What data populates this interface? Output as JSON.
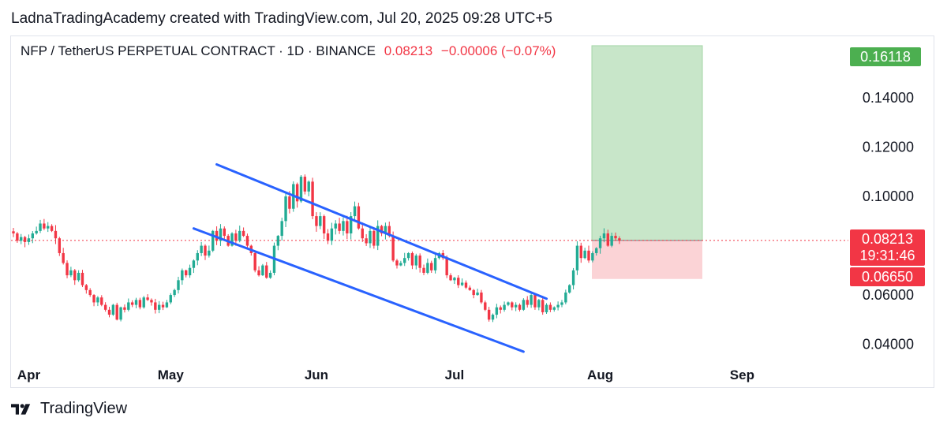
{
  "header": {
    "text": "LadnaTradingAcademy created with TradingView.com, Jul 20, 2025 09:28 UTC+5"
  },
  "legend": {
    "symbol": "NFP / TetherUS PERPETUAL CONTRACT · 1D · BINANCE",
    "price": "0.08213",
    "change": "−0.00006 (−0.07%)"
  },
  "price_tags": {
    "target": "0.16118",
    "last": "0.08213",
    "countdown": "19:31:46",
    "stop": "0.06650"
  },
  "footer": {
    "brand": "TradingView"
  },
  "colors": {
    "up": "#22ab94",
    "down": "#f23645",
    "trend": "#2962ff",
    "profit_zone": "#c8e6c9",
    "loss_zone": "#fbd3d6"
  },
  "chart_data": {
    "type": "candlestick",
    "symbol": "NFP / TetherUS PERPETUAL CONTRACT",
    "interval": "1D",
    "exchange": "BINANCE",
    "y_ticks": [
      "0.14000",
      "0.12000",
      "0.10000",
      "0.06000",
      "0.04000"
    ],
    "x_ticks": [
      "Apr",
      "May",
      "Jun",
      "Jul",
      "Aug",
      "Sep"
    ],
    "ylim": [
      0.0325,
      0.165
    ],
    "last_price": 0.08213,
    "series": [
      {
        "close": [
          0.085,
          0.082,
          0.0835,
          0.0815,
          0.083,
          0.085,
          0.086,
          0.089,
          0.087,
          0.088,
          0.086,
          0.083,
          0.077,
          0.073,
          0.068,
          0.07,
          0.066,
          0.069,
          0.064,
          0.062,
          0.06,
          0.057,
          0.059,
          0.056,
          0.054,
          0.052,
          0.056,
          0.05,
          0.055,
          0.054,
          0.057,
          0.056,
          0.058,
          0.055,
          0.059,
          0.058,
          0.057,
          0.054,
          0.056,
          0.055,
          0.057,
          0.06,
          0.062,
          0.066,
          0.07,
          0.068,
          0.071,
          0.074,
          0.077,
          0.08,
          0.076,
          0.078,
          0.086,
          0.082,
          0.087,
          0.084,
          0.08,
          0.085,
          0.082,
          0.086,
          0.084,
          0.08,
          0.077,
          0.07,
          0.068,
          0.072,
          0.067,
          0.069,
          0.08,
          0.084,
          0.09,
          0.1,
          0.095,
          0.105,
          0.098,
          0.108,
          0.102,
          0.106,
          0.092,
          0.088,
          0.092,
          0.085,
          0.082,
          0.087,
          0.089,
          0.086,
          0.09,
          0.085,
          0.092,
          0.096,
          0.087,
          0.083,
          0.081,
          0.086,
          0.08,
          0.088,
          0.085,
          0.088,
          0.084,
          0.074,
          0.072,
          0.073,
          0.075,
          0.077,
          0.072,
          0.076,
          0.071,
          0.069,
          0.073,
          0.07,
          0.075,
          0.077,
          0.075,
          0.068,
          0.066,
          0.067,
          0.064,
          0.065,
          0.063,
          0.062,
          0.06,
          0.061,
          0.057,
          0.054,
          0.05,
          0.052,
          0.055,
          0.054,
          0.056,
          0.057,
          0.055,
          0.056,
          0.054,
          0.058,
          0.056,
          0.06,
          0.055,
          0.058,
          0.053,
          0.056,
          0.054,
          0.055,
          0.056,
          0.057,
          0.061,
          0.064,
          0.07,
          0.08,
          0.075,
          0.078,
          0.074,
          0.077,
          0.079,
          0.083,
          0.085,
          0.08,
          0.084,
          0.083,
          0.0821
        ]
      }
    ],
    "trend_lines": [
      {
        "name": "upper channel",
        "from": {
          "day": 53,
          "price": 0.113
        },
        "to": {
          "day": 139,
          "price": 0.0585
        }
      },
      {
        "name": "lower channel",
        "from": {
          "day": 47,
          "price": 0.087
        },
        "to": {
          "day": 133,
          "price": 0.037
        }
      }
    ],
    "position": {
      "type": "long",
      "entry": 0.08213,
      "target": 0.16118,
      "stop": 0.0665
    }
  }
}
